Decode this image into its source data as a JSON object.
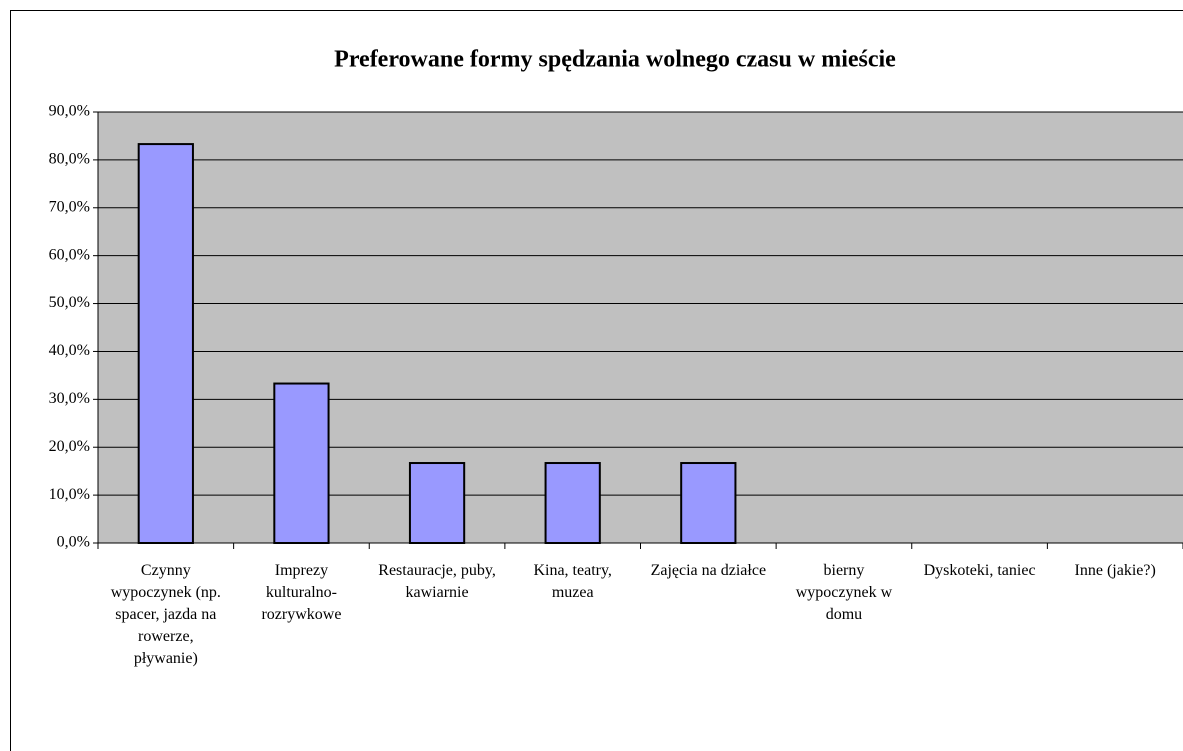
{
  "chart_data": {
    "type": "bar",
    "title": "Preferowane formy spędzania wolnego czasu w mieście",
    "categories": [
      "Czynny wypoczynek (np. spacer, jazda na rowerze, pływanie)",
      "Imprezy kulturalno-rozrywkowe",
      "Restauracje, puby, kawiarnie",
      "Kina, teatry, muzea",
      "Zajęcia na działce",
      "bierny wypoczynek w domu",
      "Dyskoteki, taniec",
      "Inne (jakie?)"
    ],
    "values": [
      83.3,
      33.3,
      16.7,
      16.7,
      16.7,
      0,
      0,
      0
    ],
    "color": "#9999ff",
    "ylim": [
      0,
      90
    ],
    "yticks": [
      {
        "value": 0,
        "label": "0,0%"
      },
      {
        "value": 10,
        "label": "10,0%"
      },
      {
        "value": 20,
        "label": "20,0%"
      },
      {
        "value": 30,
        "label": "30,0%"
      },
      {
        "value": 40,
        "label": "40,0%"
      },
      {
        "value": 50,
        "label": "50,0%"
      },
      {
        "value": 60,
        "label": "60,0%"
      },
      {
        "value": 70,
        "label": "70,0%"
      },
      {
        "value": 80,
        "label": "80,0%"
      },
      {
        "value": 90,
        "label": "90,0%"
      }
    ],
    "grid": true
  }
}
